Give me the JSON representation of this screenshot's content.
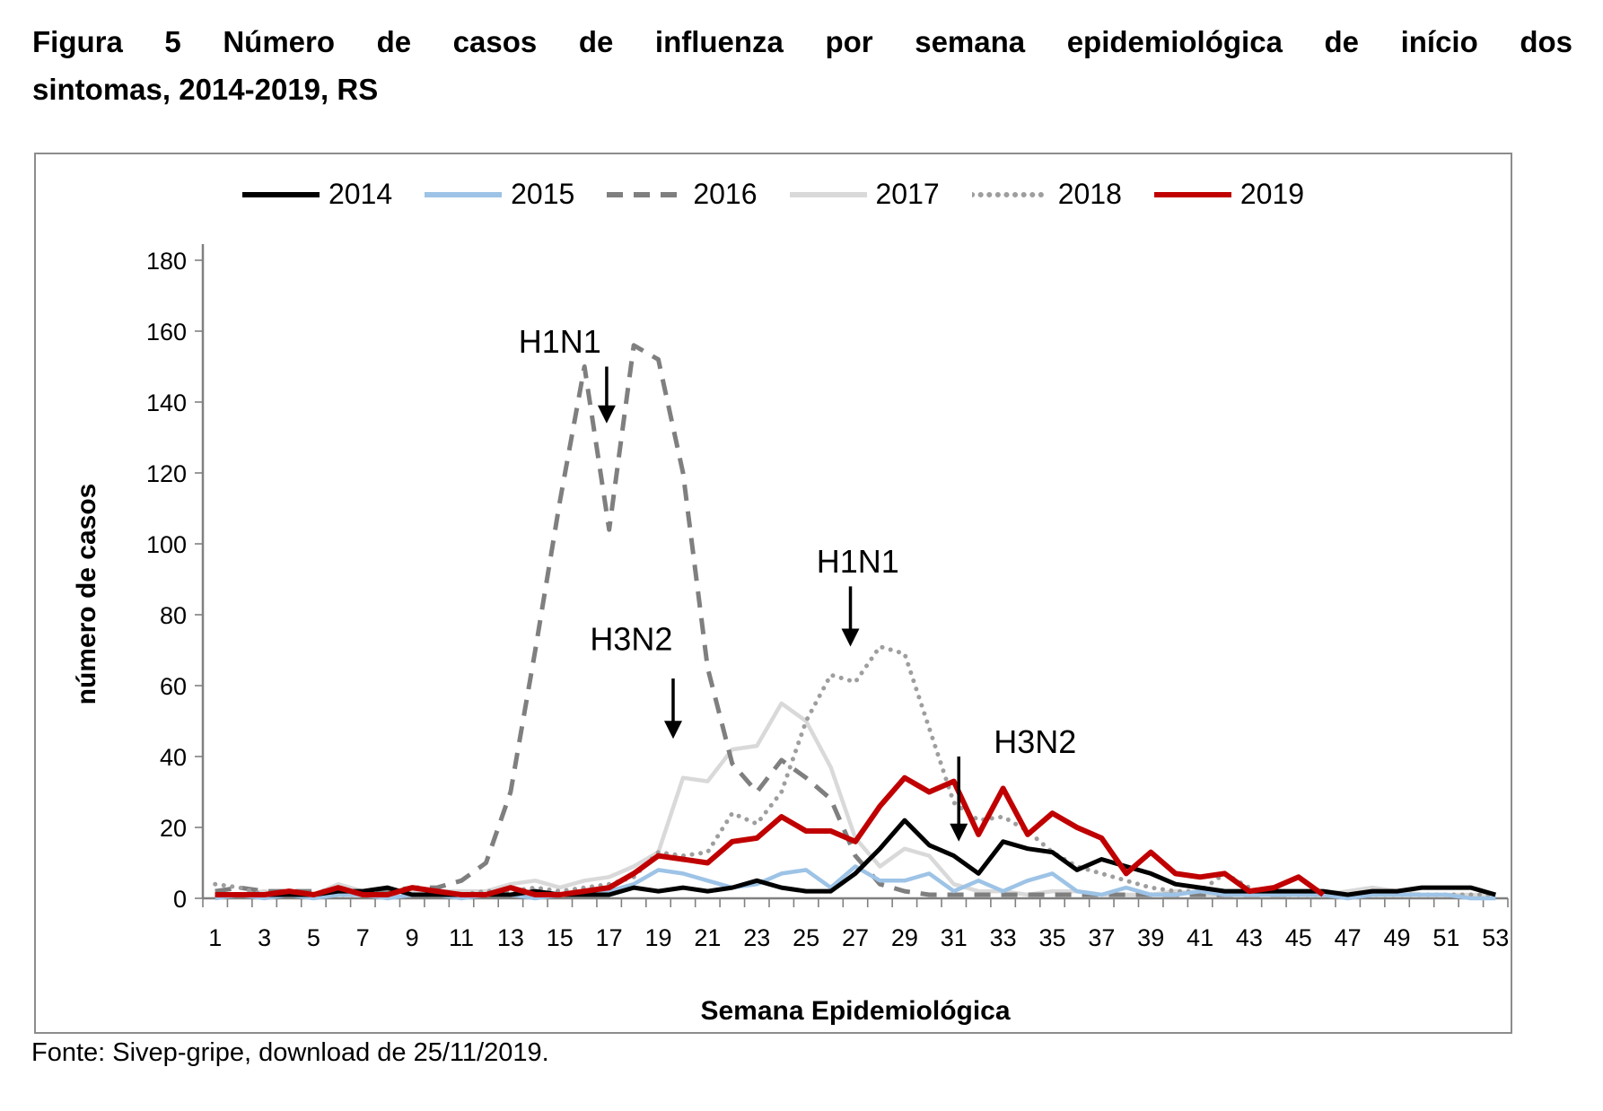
{
  "title": {
    "line1": "Figura 5 Número de casos de influenza por semana epidemiológica de início dos",
    "line2": "sintomas, 2014-2019, RS"
  },
  "footer": {
    "source": "Fonte: Sivep-gripe, download de 25/11/2019."
  },
  "chart_data": {
    "type": "line",
    "title": "",
    "xlabel": "Semana Epidemiológica",
    "ylabel": "número de casos",
    "ylim": [
      0,
      180
    ],
    "grid": false,
    "legend_position": "top",
    "x": [
      1,
      2,
      3,
      4,
      5,
      6,
      7,
      8,
      9,
      10,
      11,
      12,
      13,
      14,
      15,
      16,
      17,
      18,
      19,
      20,
      21,
      22,
      23,
      24,
      25,
      26,
      27,
      28,
      29,
      30,
      31,
      32,
      33,
      34,
      35,
      36,
      37,
      38,
      39,
      40,
      41,
      42,
      43,
      44,
      45,
      46,
      47,
      48,
      49,
      50,
      51,
      52,
      53
    ],
    "xticks": [
      1,
      3,
      5,
      7,
      9,
      11,
      13,
      15,
      17,
      19,
      21,
      23,
      25,
      27,
      29,
      31,
      33,
      35,
      37,
      39,
      41,
      43,
      45,
      47,
      49,
      51,
      53
    ],
    "yticks": [
      0,
      20,
      40,
      60,
      80,
      100,
      120,
      140,
      160,
      180
    ],
    "axis_color": "#808080",
    "series": [
      {
        "name": "2014",
        "color": "#000000",
        "dash": "solid",
        "width": 5,
        "values": [
          1,
          1,
          1,
          1,
          1,
          2,
          2,
          3,
          1,
          1,
          1,
          1,
          1,
          2,
          1,
          1,
          1,
          3,
          2,
          3,
          2,
          3,
          5,
          3,
          2,
          2,
          7,
          14,
          22,
          15,
          12,
          7,
          16,
          14,
          13,
          8,
          11,
          9,
          7,
          4,
          3,
          2,
          2,
          2,
          2,
          2,
          1,
          2,
          2,
          3,
          3,
          3,
          1
        ]
      },
      {
        "name": "2015",
        "color": "#9dc3e6",
        "dash": "solid",
        "width": 4.5,
        "values": [
          0,
          1,
          0,
          1,
          0,
          1,
          1,
          0,
          1,
          1,
          0,
          1,
          1,
          0,
          1,
          2,
          2,
          4,
          8,
          7,
          5,
          3,
          4,
          7,
          8,
          3,
          9,
          5,
          5,
          7,
          2,
          5,
          2,
          5,
          7,
          2,
          1,
          3,
          1,
          1,
          2,
          1,
          1,
          1,
          1,
          1,
          0,
          1,
          1,
          1,
          1,
          0,
          0
        ]
      },
      {
        "name": "2016",
        "color": "#7f7f7f",
        "dash": "dashed",
        "width": 5,
        "values": [
          2,
          3,
          2,
          2,
          2,
          2,
          2,
          2,
          3,
          3,
          5,
          10,
          30,
          70,
          112,
          150,
          104,
          156,
          152,
          120,
          65,
          38,
          30,
          39,
          34,
          28,
          12,
          4,
          2,
          1,
          1,
          1,
          1,
          1,
          1,
          1,
          1,
          1,
          1,
          1,
          1,
          1,
          1,
          1,
          1,
          null,
          null,
          null,
          null,
          null,
          null,
          null,
          null
        ]
      },
      {
        "name": "2017",
        "color": "#d9d9d9",
        "dash": "solid",
        "width": 4.5,
        "values": [
          1,
          1,
          2,
          1,
          1,
          4,
          2,
          2,
          2,
          2,
          2,
          2,
          4,
          5,
          3,
          5,
          6,
          9,
          13,
          34,
          33,
          42,
          43,
          55,
          50,
          37,
          17,
          9,
          14,
          12,
          4,
          2,
          2,
          1,
          2,
          2,
          1,
          1,
          1,
          2,
          1,
          1,
          1,
          2,
          1,
          1,
          2,
          3,
          2,
          1,
          1,
          1,
          1
        ]
      },
      {
        "name": "2018",
        "color": "#9e9e9e",
        "dash": "dotted",
        "width": 5,
        "values": [
          4,
          3,
          1,
          1,
          1,
          1,
          1,
          1,
          1,
          1,
          1,
          2,
          2,
          3,
          2,
          3,
          4,
          6,
          13,
          12,
          13,
          24,
          21,
          30,
          50,
          63,
          61,
          71,
          69,
          48,
          27,
          22,
          23,
          19,
          13,
          9,
          7,
          5,
          3,
          2,
          2,
          7,
          3,
          1,
          1,
          1,
          1,
          1,
          1,
          1,
          1,
          1,
          1
        ]
      },
      {
        "name": "2019",
        "color": "#c00000",
        "dash": "solid",
        "width": 6,
        "values": [
          1,
          1,
          1,
          2,
          1,
          3,
          1,
          1,
          3,
          2,
          1,
          1,
          3,
          1,
          1,
          2,
          3,
          7,
          12,
          11,
          10,
          16,
          17,
          23,
          19,
          19,
          16,
          26,
          34,
          30,
          33,
          18,
          31,
          18,
          24,
          20,
          17,
          7,
          13,
          7,
          6,
          7,
          2,
          3,
          6,
          1,
          null,
          null,
          null,
          null,
          null,
          null,
          null
        ]
      }
    ],
    "annotations": [
      {
        "label": "H1N1",
        "text_week": 15.0,
        "text_value": 157,
        "arrow_week": 16.9,
        "arrow_from_value": 150,
        "arrow_to_value": 134
      },
      {
        "label": "H3N2",
        "text_week": 17.9,
        "text_value": 73,
        "arrow_week": 19.6,
        "arrow_from_value": 62,
        "arrow_to_value": 45
      },
      {
        "label": "H1N1",
        "text_week": 27.1,
        "text_value": 95,
        "arrow_week": 26.8,
        "arrow_from_value": 88,
        "arrow_to_value": 71
      },
      {
        "label": "H3N2",
        "text_week": 34.3,
        "text_value": 44,
        "arrow_week": 31.2,
        "arrow_from_value": 40,
        "arrow_to_value": 16
      }
    ]
  }
}
